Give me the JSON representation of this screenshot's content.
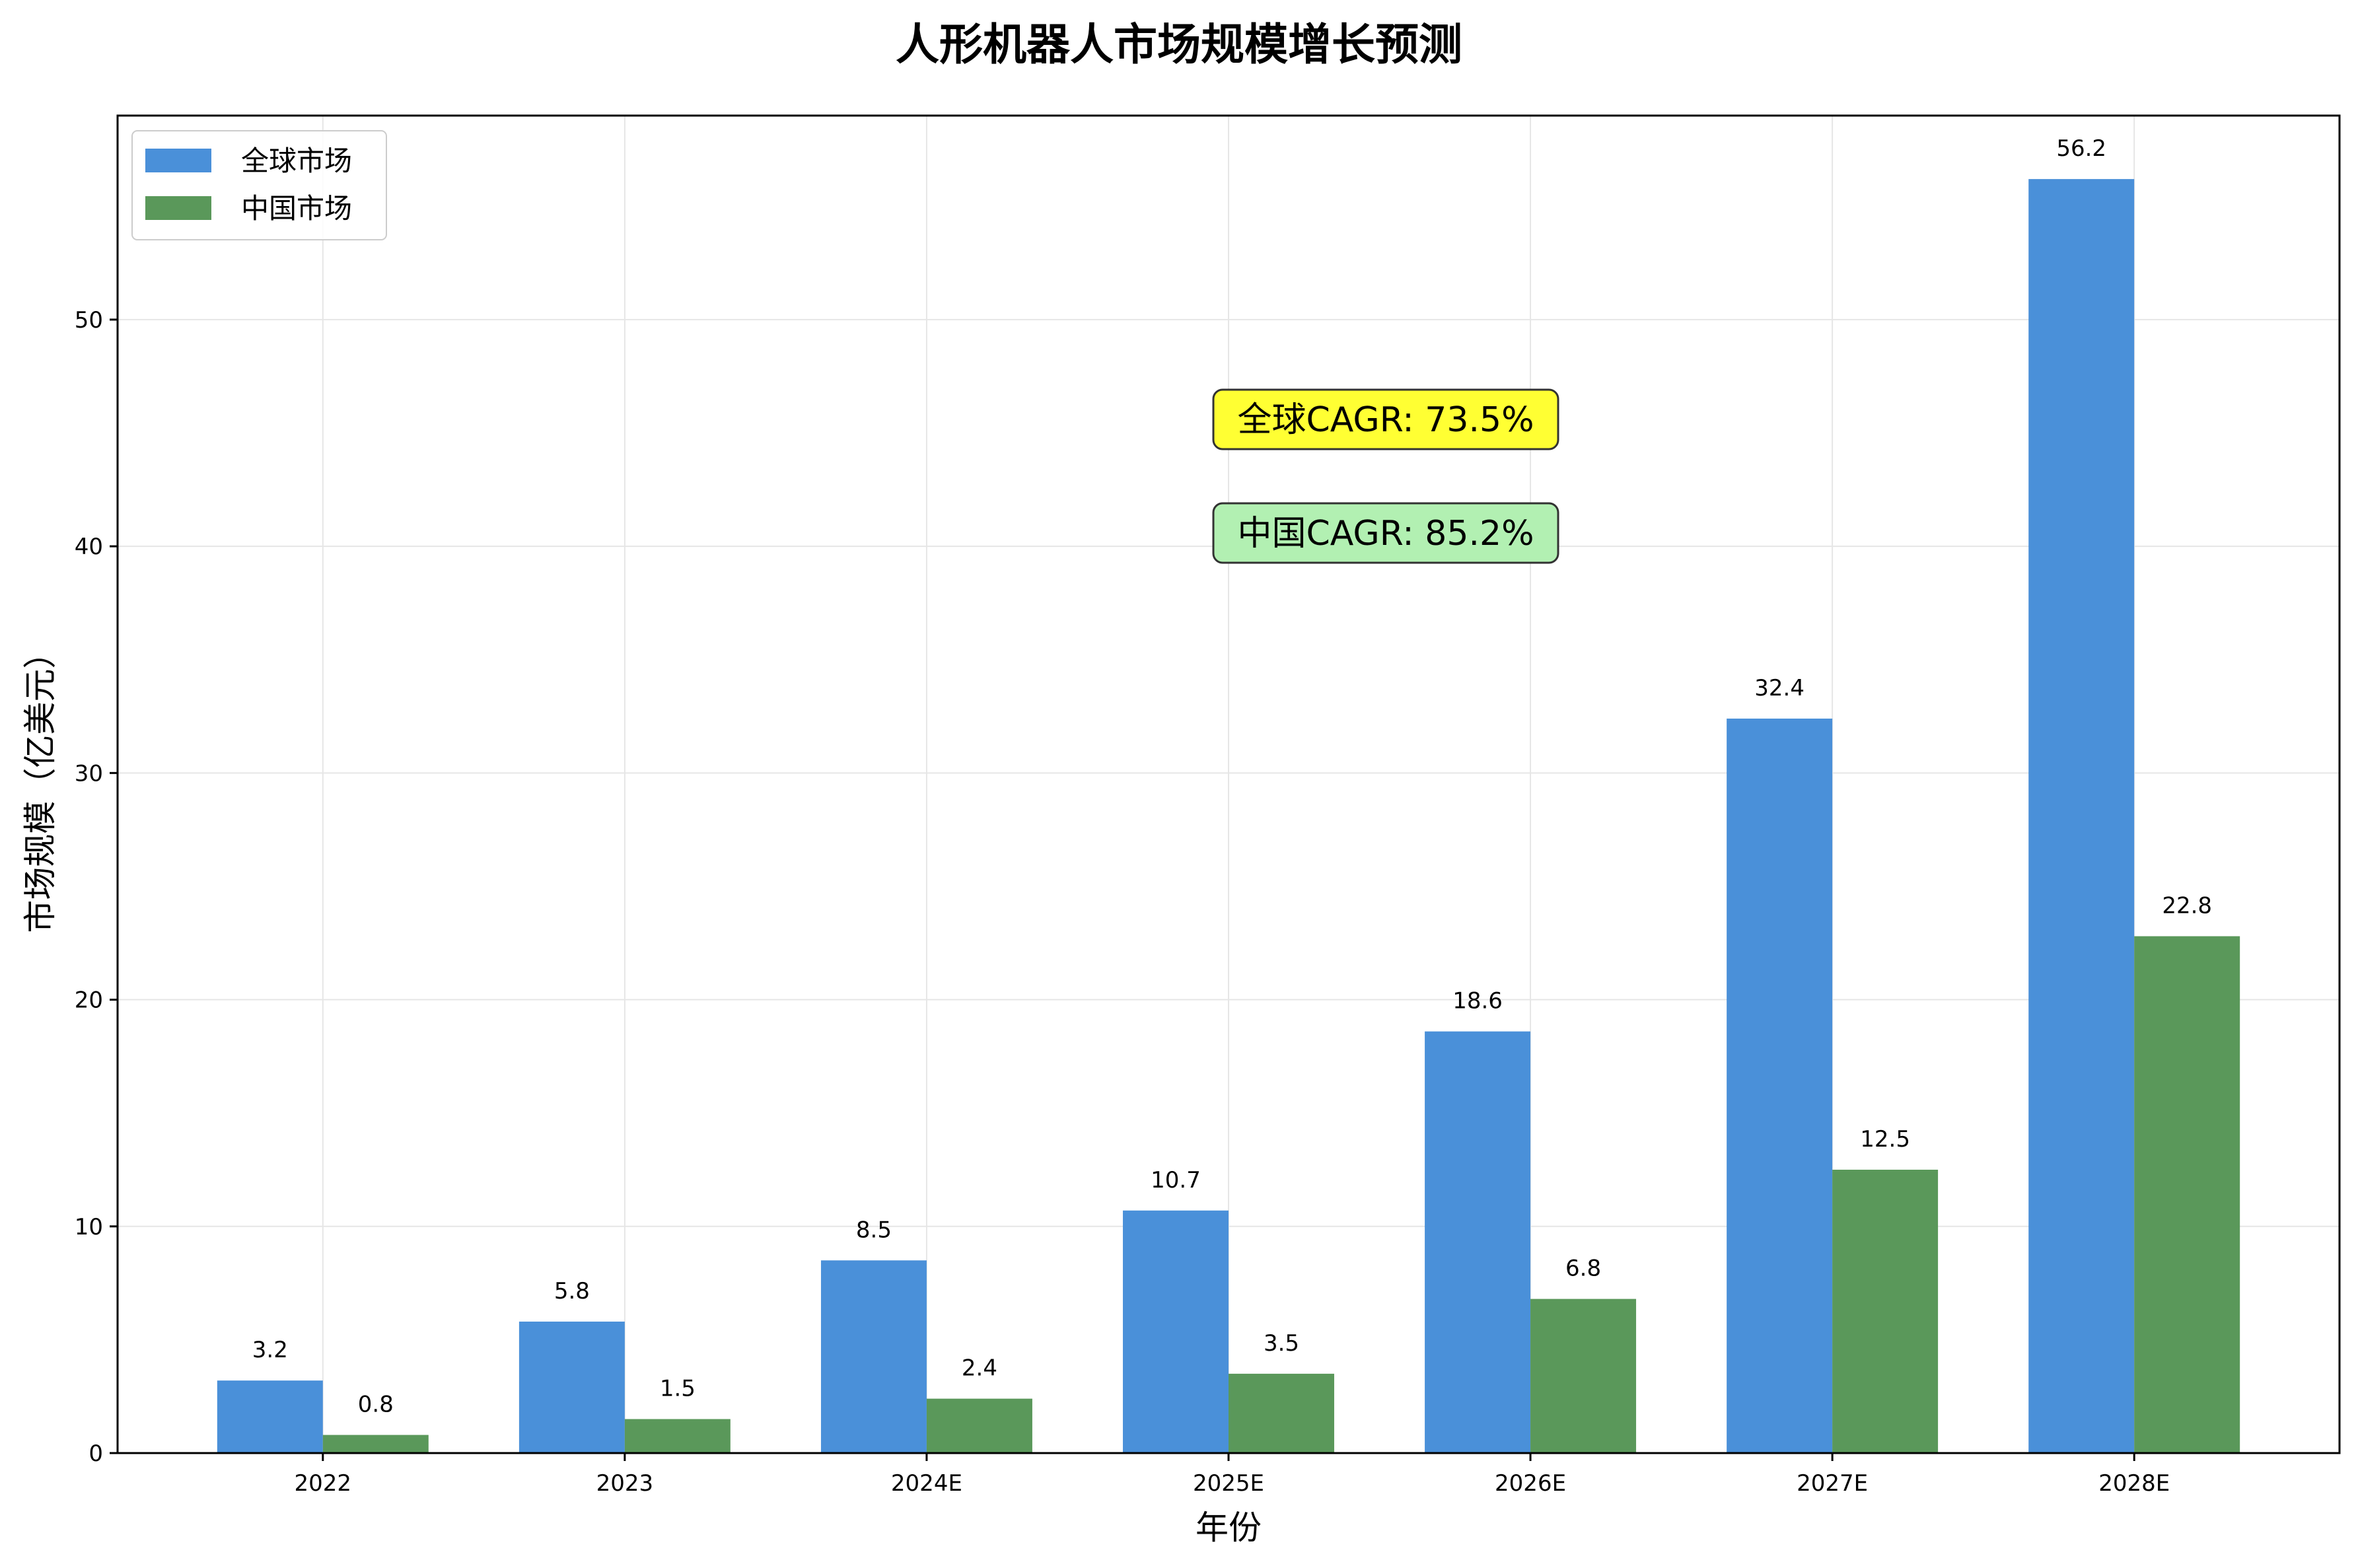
{
  "chart_data": {
    "type": "bar",
    "title": "人形机器人市场规模增长预测",
    "xlabel": "年份",
    "ylabel": "市场规模（亿美元）",
    "categories": [
      "2022",
      "2023",
      "2024E",
      "2025E",
      "2026E",
      "2027E",
      "2028E"
    ],
    "series": [
      {
        "name": "全球市场",
        "color": "#4a90d9",
        "values": [
          3.2,
          5.8,
          8.5,
          10.7,
          18.6,
          32.4,
          56.2
        ]
      },
      {
        "name": "中国市场",
        "color": "#5a985a",
        "values": [
          0.8,
          1.5,
          2.4,
          3.5,
          6.8,
          12.5,
          22.8
        ]
      }
    ],
    "yticks": [
      0,
      10,
      20,
      30,
      40,
      50
    ],
    "ylim": [
      0,
      59
    ],
    "grid": true,
    "legend": "top-left",
    "annotations": [
      {
        "text": "全球CAGR: 73.5%",
        "background": "#ffff33"
      },
      {
        "text": "中国CAGR: 85.2%",
        "background": "#b2f0b2"
      }
    ]
  }
}
